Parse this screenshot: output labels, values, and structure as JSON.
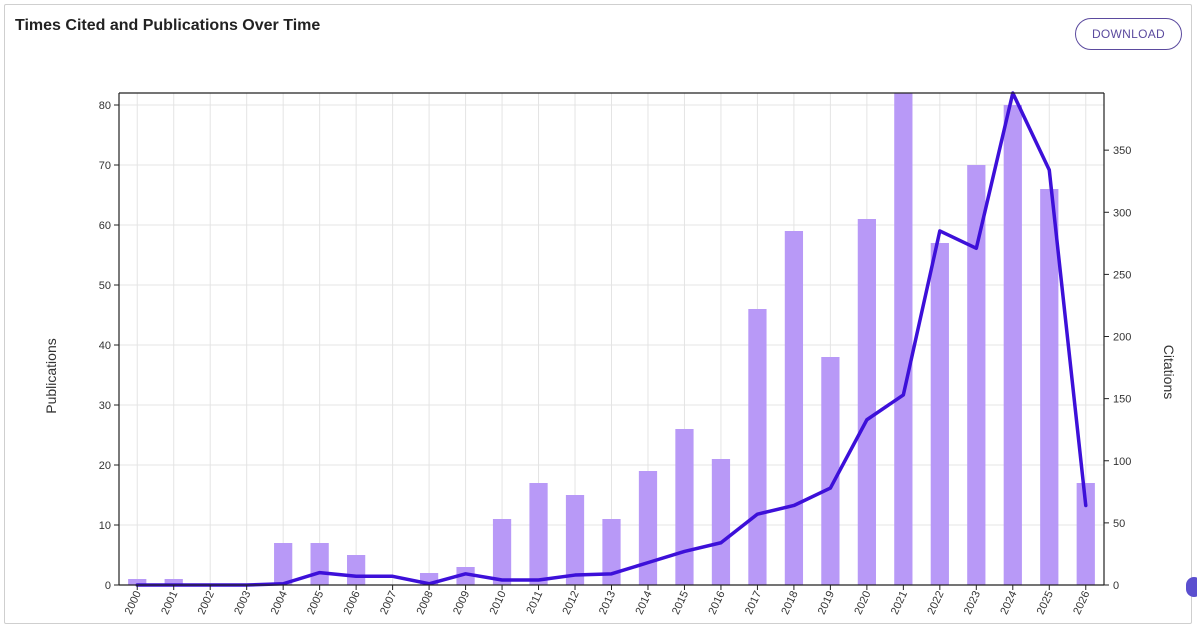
{
  "header": {
    "title": "Times Cited and Publications Over Time",
    "download_label": "DOWNLOAD"
  },
  "colors": {
    "bar": "#b899f7",
    "line": "#3d10d9",
    "axis": "#222222",
    "grid": "#e4e4e4"
  },
  "chart_data": {
    "type": "bar",
    "title": "Times Cited and Publications Over Time",
    "xlabel": "",
    "ylabel": "Publications",
    "y2label": "Citations",
    "ylim": [
      0,
      82
    ],
    "y2lim": [
      0,
      396
    ],
    "yticks": [
      0,
      10,
      20,
      30,
      40,
      50,
      60,
      70,
      80
    ],
    "y2ticks": [
      0,
      50,
      100,
      150,
      200,
      250,
      300,
      350
    ],
    "grid": true,
    "categories": [
      "2000",
      "2001",
      "2002",
      "2003",
      "2004",
      "2005",
      "2006",
      "2007",
      "2008",
      "2009",
      "2010",
      "2011",
      "2012",
      "2013",
      "2014",
      "2015",
      "2016",
      "2017",
      "2018",
      "2019",
      "2020",
      "2021",
      "2022",
      "2023",
      "2024",
      "2025",
      "2026"
    ],
    "series": [
      {
        "kind": "bar",
        "axis": "left",
        "values": [
          1,
          1,
          0,
          0,
          7,
          7,
          5,
          0,
          2,
          3,
          11,
          17,
          15,
          11,
          19,
          26,
          21,
          46,
          59,
          38,
          61,
          82,
          57,
          70,
          80,
          66,
          17
        ]
      },
      {
        "kind": "line",
        "axis": "right",
        "values": [
          0,
          0,
          0,
          0,
          1,
          10,
          7,
          7,
          1,
          9,
          4,
          4,
          8,
          9,
          18,
          27,
          34,
          57,
          64,
          78,
          133,
          153,
          285,
          271,
          396,
          334,
          64
        ]
      }
    ]
  }
}
